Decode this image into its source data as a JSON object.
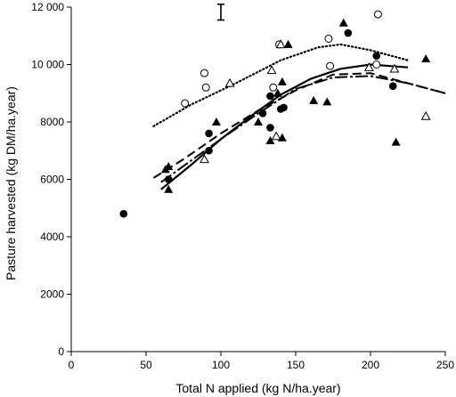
{
  "chart_data": {
    "type": "scatter",
    "title": "",
    "xlabel": "Total N applied (kg N/ha.year)",
    "ylabel": "Pasture harvested (kg DM/ha.year)",
    "xlim": [
      0,
      250
    ],
    "ylim": [
      0,
      12000
    ],
    "x_ticks": [
      "0",
      "50",
      "100",
      "150",
      "200",
      "250"
    ],
    "y_ticks": [
      "0",
      "2000",
      "4000",
      "6000",
      "8000",
      "10 000",
      "12 000"
    ],
    "x_tick_values": [
      0,
      50,
      100,
      150,
      200,
      250
    ],
    "y_tick_values": [
      0,
      2000,
      4000,
      6000,
      8000,
      10000,
      12000
    ],
    "grid": false,
    "legend": "none",
    "error_bar": {
      "x": 100,
      "y_low": 11550,
      "y_high": 12100
    },
    "series": [
      {
        "marker": "filled-circle",
        "points": [
          [
            35,
            4800
          ],
          [
            65,
            6000
          ],
          [
            92,
            7600
          ],
          [
            92,
            7000
          ],
          [
            128,
            8300
          ],
          [
            133,
            8900
          ],
          [
            133,
            7800
          ],
          [
            140,
            8450
          ],
          [
            142,
            8500
          ],
          [
            185,
            11100
          ],
          [
            204,
            10300
          ],
          [
            215,
            9250
          ]
        ]
      },
      {
        "marker": "open-circle",
        "points": [
          [
            76,
            8650
          ],
          [
            89,
            9700
          ],
          [
            90,
            9200
          ],
          [
            135,
            9200
          ],
          [
            139,
            10700
          ],
          [
            172,
            10900
          ],
          [
            173,
            9950
          ],
          [
            205,
            11750
          ],
          [
            204,
            10000
          ]
        ]
      },
      {
        "marker": "filled-triangle",
        "points": [
          [
            63,
            6350
          ],
          [
            65,
            5650
          ],
          [
            65,
            6450
          ],
          [
            97,
            8000
          ],
          [
            125,
            8000
          ],
          [
            133,
            7350
          ],
          [
            138,
            9000
          ],
          [
            141,
            7450
          ],
          [
            141,
            9400
          ],
          [
            145,
            10700
          ],
          [
            162,
            8750
          ],
          [
            171,
            8700
          ],
          [
            182,
            11450
          ],
          [
            217,
            7300
          ],
          [
            237,
            10200
          ]
        ]
      },
      {
        "marker": "open-triangle",
        "points": [
          [
            89,
            6700
          ],
          [
            106,
            9350
          ],
          [
            134,
            9800
          ],
          [
            137,
            7500
          ],
          [
            140,
            10700
          ],
          [
            199,
            9900
          ],
          [
            216,
            9850
          ],
          [
            237,
            8200
          ]
        ]
      }
    ],
    "fits": [
      {
        "style": "dotted",
        "points": [
          [
            55,
            7850
          ],
          [
            80,
            8600
          ],
          [
            110,
            9350
          ],
          [
            140,
            10150
          ],
          [
            165,
            10600
          ],
          [
            180,
            10700
          ],
          [
            200,
            10500
          ],
          [
            225,
            10150
          ]
        ]
      },
      {
        "style": "solid",
        "points": [
          [
            60,
            5650
          ],
          [
            80,
            6500
          ],
          [
            100,
            7400
          ],
          [
            120,
            8200
          ],
          [
            140,
            8950
          ],
          [
            160,
            9500
          ],
          [
            180,
            9850
          ],
          [
            200,
            10000
          ],
          [
            225,
            9900
          ]
        ]
      },
      {
        "style": "long-dash",
        "points": [
          [
            55,
            6050
          ],
          [
            75,
            6700
          ],
          [
            100,
            7600
          ],
          [
            125,
            8400
          ],
          [
            150,
            9100
          ],
          [
            175,
            9650
          ],
          [
            200,
            9700
          ],
          [
            225,
            9350
          ],
          [
            250,
            9000
          ]
        ]
      },
      {
        "style": "dash-dot",
        "points": [
          [
            60,
            5900
          ],
          [
            80,
            6650
          ],
          [
            100,
            7400
          ],
          [
            125,
            8300
          ],
          [
            150,
            9150
          ],
          [
            175,
            9550
          ],
          [
            200,
            9600
          ],
          [
            225,
            9350
          ],
          [
            250,
            9000
          ]
        ]
      }
    ]
  }
}
